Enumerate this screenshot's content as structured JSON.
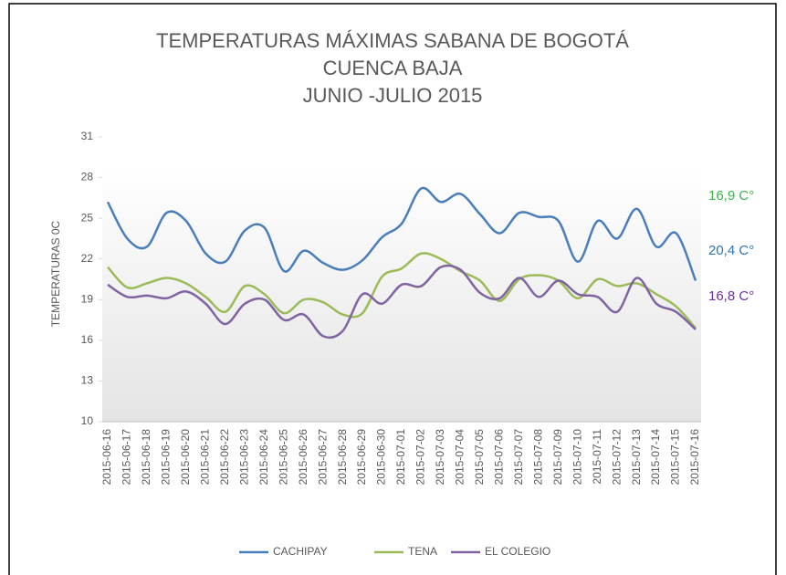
{
  "chart_data": {
    "type": "line",
    "title": [
      "TEMPERATURAS MÁXIMAS SABANA DE BOGOTÁ",
      "CUENCA BAJA",
      "JUNIO -JULIO 2015"
    ],
    "y_label": "TEMPERATURAS 0C",
    "categories": [
      "2015-06-16",
      "2015-06-17",
      "2015-06-18",
      "2015-06-19",
      "2015-06-20",
      "2015-06-21",
      "2015-06-22",
      "2015-06-23",
      "2015-06-24",
      "2015-06-25",
      "2015-06-26",
      "2015-06-27",
      "2015-06-28",
      "2015-06-29",
      "2015-06-30",
      "2015-07-01",
      "2015-07-02",
      "2015-07-03",
      "2015-07-04",
      "2015-07-05",
      "2015-07-06",
      "2015-07-07",
      "2015-07-08",
      "2015-07-09",
      "2015-07-10",
      "2015-07-11",
      "2015-07-12",
      "2015-07-13",
      "2015-07-14",
      "2015-07-15",
      "2015-07-16"
    ],
    "series": [
      {
        "name": "CACHIPAY",
        "color": "#4a7ebb",
        "values": [
          26.2,
          23.5,
          22.9,
          25.4,
          24.8,
          22.4,
          21.8,
          24.1,
          24.3,
          21.1,
          22.6,
          21.7,
          21.2,
          21.9,
          23.6,
          24.6,
          27.2,
          26.2,
          26.8,
          25.3,
          23.9,
          25.4,
          25.1,
          24.8,
          21.8,
          24.8,
          23.5,
          25.7,
          22.9,
          23.9,
          20.4
        ]
      },
      {
        "name": "TENA",
        "color": "#9bbb59",
        "values": [
          21.4,
          19.9,
          20.2,
          20.6,
          20.2,
          19.2,
          18.1,
          20.0,
          19.4,
          18.0,
          19.0,
          18.8,
          17.9,
          18.0,
          20.7,
          21.3,
          22.4,
          22.0,
          21.1,
          20.4,
          18.9,
          20.5,
          20.8,
          20.4,
          19.1,
          20.5,
          20.0,
          20.2,
          19.4,
          18.5,
          16.9
        ]
      },
      {
        "name": "EL COLEGIO",
        "color": "#8064a2",
        "values": [
          20.1,
          19.2,
          19.3,
          19.1,
          19.6,
          18.7,
          17.2,
          18.7,
          19.0,
          17.5,
          17.9,
          16.3,
          16.7,
          19.4,
          18.7,
          20.1,
          20.0,
          21.4,
          21.2,
          19.5,
          19.1,
          20.6,
          19.2,
          20.4,
          19.4,
          19.2,
          18.1,
          20.6,
          18.7,
          18.1,
          16.8
        ]
      }
    ],
    "annotations": [
      {
        "text": "16,9 C°",
        "color": "#3cb44b"
      },
      {
        "text": "20,4 C°",
        "color": "#2e75b6"
      },
      {
        "text": "16,8 C°",
        "color": "#7030a0"
      }
    ],
    "ylim": [
      10,
      31
    ],
    "yticks": [
      10,
      13,
      16,
      19,
      22,
      25,
      28,
      31
    ],
    "legend": "bottom"
  }
}
